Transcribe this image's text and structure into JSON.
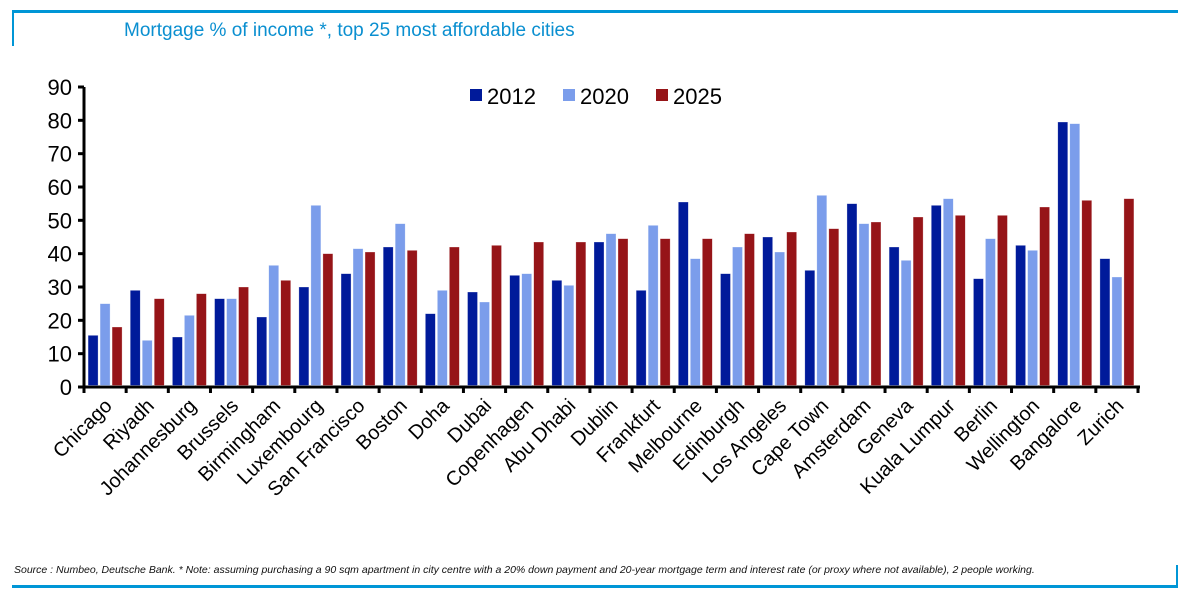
{
  "header": {
    "title": "Mortgage % of income *, top 25 most affordable cities"
  },
  "footer": {
    "source": "Source : Numbeo, Deutsche Bank. * Note: assuming purchasing a 90 sqm apartment in city centre with a 20% down payment and 20-year mortgage term and interest rate (or proxy where not available), 2 people working."
  },
  "chart_data": {
    "type": "bar",
    "title": "Mortgage % of income *, top 25 most affordable cities",
    "xlabel": "",
    "ylabel": "",
    "ylim": [
      0,
      90
    ],
    "yticks": [
      0,
      10,
      20,
      30,
      40,
      50,
      60,
      70,
      80,
      90
    ],
    "grid": false,
    "legend_position": "top-center",
    "categories": [
      "Chicago",
      "Riyadh",
      "Johannesburg",
      "Brussels",
      "Birmingham",
      "Luxembourg",
      "San Francisco",
      "Boston",
      "Doha",
      "Dubai",
      "Copenhagen",
      "Abu Dhabi",
      "Dublin",
      "Frankfurt",
      "Melbourne",
      "Edinburgh",
      "Los Angeles",
      "Cape Town",
      "Amsterdam",
      "Geneva",
      "Kuala Lumpur",
      "Berlin",
      "Wellington",
      "Bangalore",
      "Zurich"
    ],
    "series": [
      {
        "name": "2012",
        "color": "#001a9a",
        "values": [
          15.5,
          29,
          15,
          26.5,
          21,
          30,
          34,
          42,
          22,
          28.5,
          33.5,
          32,
          43.5,
          29,
          55.5,
          34,
          45,
          35,
          55,
          42,
          54.5,
          32.5,
          42.5,
          79.5,
          38.5
        ]
      },
      {
        "name": "2020",
        "color": "#7b9deb",
        "values": [
          25,
          14,
          21.5,
          26.5,
          36.5,
          54.5,
          41.5,
          49,
          29,
          25.5,
          34,
          30.5,
          46,
          48.5,
          38.5,
          42,
          40.5,
          57.5,
          49,
          38,
          56.5,
          44.5,
          41,
          79,
          33
        ]
      },
      {
        "name": "2025",
        "color": "#961418",
        "values": [
          18,
          26.5,
          28,
          30,
          32,
          40,
          40.5,
          41,
          42,
          42.5,
          43.5,
          43.5,
          44.5,
          44.5,
          44.5,
          46,
          46.5,
          47.5,
          49.5,
          51,
          51.5,
          51.5,
          54,
          56,
          56.5
        ]
      }
    ]
  }
}
